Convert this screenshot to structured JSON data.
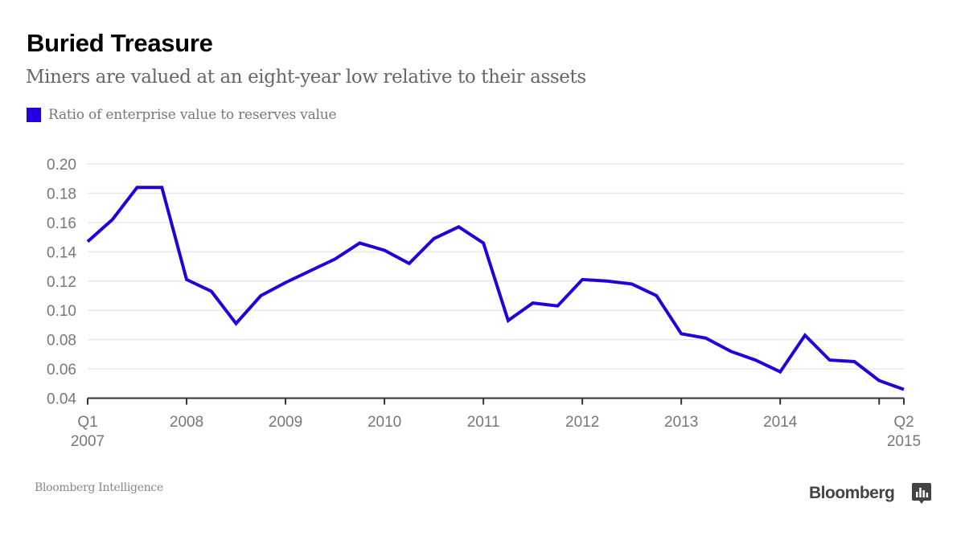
{
  "header": {
    "title": "Buried Treasure",
    "subtitle": "Miners are valued at an eight-year low relative to their assets"
  },
  "footer": {
    "source": "Bloomberg Intelligence",
    "brand": "Bloomberg",
    "brand_icon": "bloomberg-chart-icon"
  },
  "colors": {
    "series": "#2200dd",
    "grid": "#e3e8ee",
    "axis": "#333333"
  },
  "chart_data": {
    "type": "line",
    "title": "Buried Treasure",
    "subtitle": "Miners are valued at an eight-year low relative to their assets",
    "xlabel": "",
    "ylabel": "",
    "ylim": [
      0.04,
      0.2
    ],
    "yticks": [
      "0.20",
      "0.18",
      "0.16",
      "0.14",
      "0.12",
      "0.10",
      "0.08",
      "0.06",
      "0.04"
    ],
    "ytick_values": [
      0.2,
      0.18,
      0.16,
      0.14,
      0.12,
      0.1,
      0.08,
      0.06,
      0.04
    ],
    "grid": true,
    "legend": "top-left",
    "xlim": [
      2007.0,
      2015.25
    ],
    "xticks": [
      {
        "value": 2007.0,
        "line1": "Q1",
        "line2": "2007"
      },
      {
        "value": 2008.0,
        "line1": "2008",
        "line2": ""
      },
      {
        "value": 2009.0,
        "line1": "2009",
        "line2": ""
      },
      {
        "value": 2010.0,
        "line1": "2010",
        "line2": ""
      },
      {
        "value": 2011.0,
        "line1": "2011",
        "line2": ""
      },
      {
        "value": 2012.0,
        "line1": "2012",
        "line2": ""
      },
      {
        "value": 2013.0,
        "line1": "2013",
        "line2": ""
      },
      {
        "value": 2014.0,
        "line1": "2014",
        "line2": ""
      },
      {
        "value": 2015.0,
        "line1": "",
        "line2": ""
      },
      {
        "value": 2015.25,
        "line1": "Q2",
        "line2": "2015"
      }
    ],
    "series": [
      {
        "name": "Ratio of enterprise value to reserves value",
        "frequency": "quarterly",
        "start": "Q1 2007",
        "end": "Q2 2015",
        "values": [
          0.147,
          0.162,
          0.184,
          0.184,
          0.121,
          0.113,
          0.091,
          0.11,
          0.119,
          0.127,
          0.135,
          0.146,
          0.141,
          0.132,
          0.149,
          0.157,
          0.146,
          0.093,
          0.105,
          0.103,
          0.121,
          0.12,
          0.118,
          0.11,
          0.084,
          0.081,
          0.072,
          0.066,
          0.058,
          0.083,
          0.066,
          0.065,
          0.052,
          0.046
        ]
      }
    ]
  }
}
